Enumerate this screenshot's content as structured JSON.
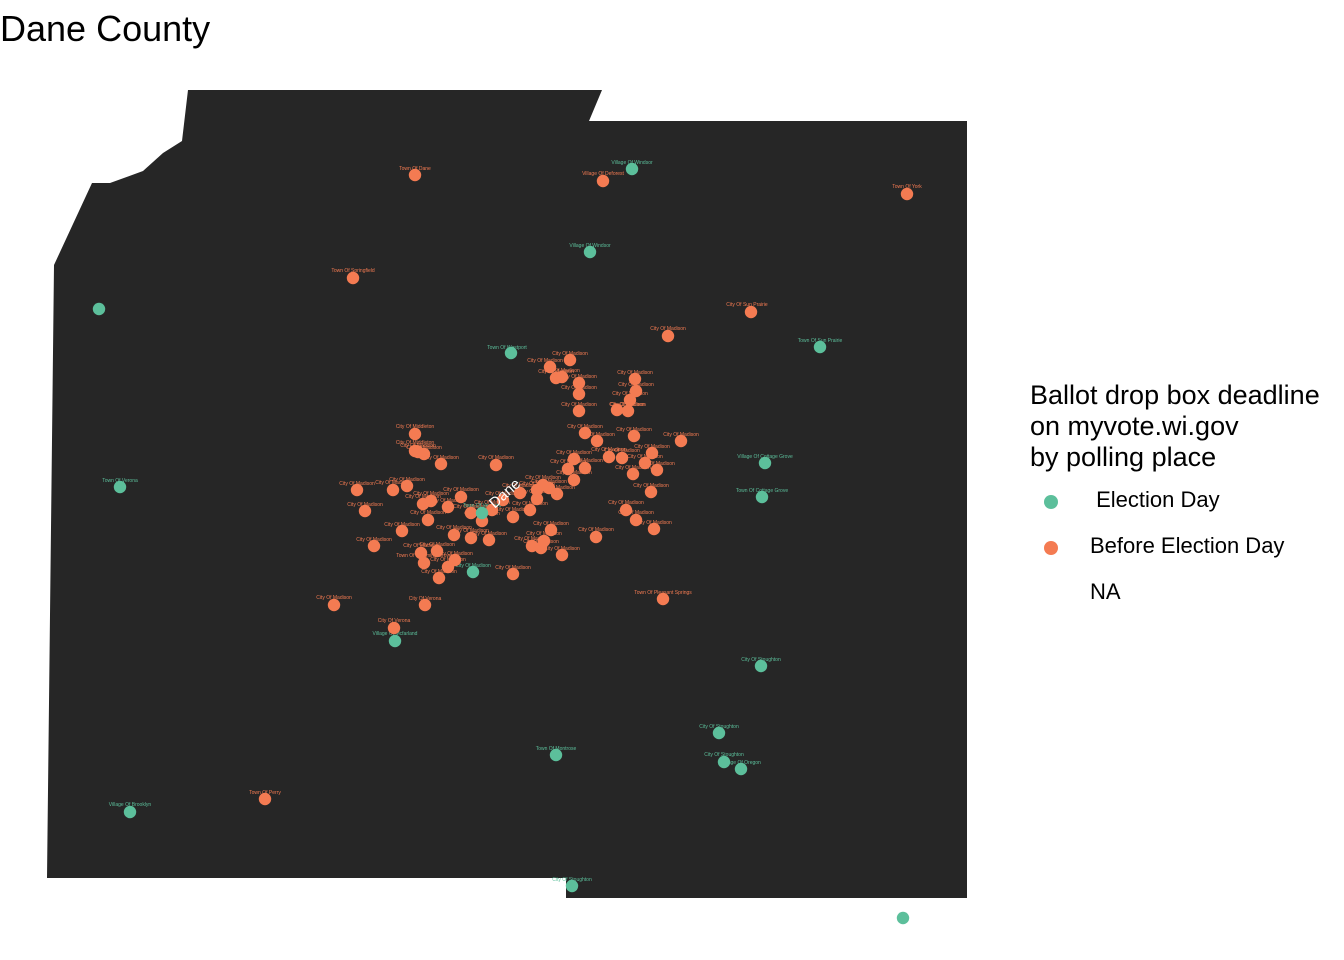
{
  "title": "Dane County",
  "county_label": "Dane",
  "colors": {
    "background": "#ffffff",
    "county_fill": "#262626",
    "election_day": "#5cbf9b",
    "before_election_day": "#f47b52",
    "county_label": "#ffffff"
  },
  "legend": {
    "title": "Ballot drop box deadline\non myvote.wi.gov\nby polling place",
    "items": [
      {
        "label": " Election Day",
        "key": "election_day"
      },
      {
        "label": "Before Election Day",
        "key": "before_election_day"
      },
      {
        "label": "NA",
        "key": "na"
      }
    ]
  },
  "polling_places": [
    {
      "label": "Town Of Dane",
      "deadline": "before_election_day"
    },
    {
      "label": "Village Of Windsor",
      "deadline": "election_day"
    },
    {
      "label": "Village Of Deforest",
      "deadline": "before_election_day"
    },
    {
      "label": "Town Of York",
      "deadline": "before_election_day"
    },
    {
      "label": "Village Of Windsor",
      "deadline": "election_day"
    },
    {
      "label": "Town Of Springfield",
      "deadline": "before_election_day"
    },
    {
      "label": "City Of Sun Prairie",
      "deadline": "before_election_day"
    },
    {
      "label": "City Of Madison",
      "deadline": "before_election_day"
    },
    {
      "label": "Town Of Westport",
      "deadline": "election_day"
    },
    {
      "label": "Town Of Sun Prairie",
      "deadline": "election_day"
    },
    {
      "label": "City Of Madison",
      "deadline": "before_election_day"
    },
    {
      "label": "City Of Madison",
      "deadline": "before_election_day"
    },
    {
      "label": "City Of Madison",
      "deadline": "before_election_day"
    },
    {
      "label": "City Of Madison",
      "deadline": "before_election_day"
    },
    {
      "label": "City Of Madison",
      "deadline": "before_election_day"
    },
    {
      "label": "City Of Madison",
      "deadline": "before_election_day"
    },
    {
      "label": "City Of Madison",
      "deadline": "before_election_day"
    },
    {
      "label": "City Of Madison",
      "deadline": "before_election_day"
    },
    {
      "label": "City Of Madison",
      "deadline": "before_election_day"
    },
    {
      "label": "City Of Madison",
      "deadline": "before_election_day"
    },
    {
      "label": "City Of Madison",
      "deadline": "before_election_day"
    },
    {
      "label": "City Of Middleton",
      "deadline": "before_election_day"
    },
    {
      "label": "City Of Middleton",
      "deadline": "before_election_day"
    },
    {
      "label": "City Of Madison",
      "deadline": "before_election_day"
    },
    {
      "label": "City Of Madison",
      "deadline": "before_election_day"
    },
    {
      "label": "City Of Madison",
      "deadline": "before_election_day"
    },
    {
      "label": "City Of Madison",
      "deadline": "before_election_day"
    },
    {
      "label": "City Of Madison",
      "deadline": "before_election_day"
    },
    {
      "label": "City Of Madison",
      "deadline": "before_election_day"
    },
    {
      "label": "City Of Madison",
      "deadline": "before_election_day"
    },
    {
      "label": "City Of Madison",
      "deadline": "before_election_day"
    },
    {
      "label": "Village Of Cottage Grove",
      "deadline": "election_day"
    },
    {
      "label": "Town Of Cottage Grove",
      "deadline": "election_day"
    },
    {
      "label": "City Of Madison",
      "deadline": "before_election_day"
    },
    {
      "label": "City Of Madison",
      "deadline": "before_election_day"
    },
    {
      "label": "City Of Madison",
      "deadline": "before_election_day"
    },
    {
      "label": "City Of Madison",
      "deadline": "before_election_day"
    },
    {
      "label": "City Of Madison",
      "deadline": "before_election_day"
    },
    {
      "label": "City Of Madison",
      "deadline": "before_election_day"
    },
    {
      "label": "City Of Madison",
      "deadline": "before_election_day"
    },
    {
      "label": "City Of Madison",
      "deadline": "before_election_day"
    },
    {
      "label": "City Of Madison",
      "deadline": "before_election_day"
    },
    {
      "label": "City Of Madison",
      "deadline": "before_election_day"
    },
    {
      "label": "City Of Madison",
      "deadline": "before_election_day"
    },
    {
      "label": "City Of Madison",
      "deadline": "before_election_day"
    },
    {
      "label": "City Of Madison",
      "deadline": "before_election_day"
    },
    {
      "label": "City Of Madison",
      "deadline": "before_election_day"
    },
    {
      "label": "City Of Madison",
      "deadline": "before_election_day"
    },
    {
      "label": "City Of Madison",
      "deadline": "before_election_day"
    },
    {
      "label": "City Of Madison",
      "deadline": "before_election_day"
    },
    {
      "label": "City Of Madison",
      "deadline": "before_election_day"
    },
    {
      "label": "City Of Madison",
      "deadline": "before_election_day"
    },
    {
      "label": "City Of Madison",
      "deadline": "before_election_day"
    },
    {
      "label": "City Of Madison",
      "deadline": "before_election_day"
    },
    {
      "label": "City Of Madison",
      "deadline": "before_election_day"
    },
    {
      "label": "City Of Madison",
      "deadline": "before_election_day"
    },
    {
      "label": "City Of Madison",
      "deadline": "before_election_day"
    },
    {
      "label": "City Of Madison",
      "deadline": "before_election_day"
    },
    {
      "label": "City Of Madison",
      "deadline": "before_election_day"
    },
    {
      "label": "City Of Madison",
      "deadline": "before_election_day"
    },
    {
      "label": "City Of Madison",
      "deadline": "before_election_day"
    },
    {
      "label": "City Of Madison",
      "deadline": "before_election_day"
    },
    {
      "label": "City Of Madison",
      "deadline": "before_election_day"
    },
    {
      "label": "City Of Madison",
      "deadline": "before_election_day"
    },
    {
      "label": "City Of Madison",
      "deadline": "before_election_day"
    },
    {
      "label": "City Of Madison",
      "deadline": "before_election_day"
    },
    {
      "label": "City Of Madison",
      "deadline": "before_election_day"
    },
    {
      "label": "City Of Madison",
      "deadline": "before_election_day"
    },
    {
      "label": "City Of Madison",
      "deadline": "before_election_day"
    },
    {
      "label": "City Of Madison",
      "deadline": "before_election_day"
    },
    {
      "label": "City Of Madison",
      "deadline": "before_election_day"
    },
    {
      "label": "City Of Madison",
      "deadline": "before_election_day"
    },
    {
      "label": "City Of Madison",
      "deadline": "before_election_day"
    },
    {
      "label": "City Of Madison",
      "deadline": "before_election_day"
    },
    {
      "label": "City Of Madison",
      "deadline": "before_election_day"
    },
    {
      "label": "City Of Madison",
      "deadline": "before_election_day"
    },
    {
      "label": "City Of Madison",
      "deadline": "before_election_day"
    },
    {
      "label": "City Of Madison",
      "deadline": "before_election_day"
    },
    {
      "label": "City Of Madison",
      "deadline": "before_election_day"
    },
    {
      "label": "City Of Madison",
      "deadline": "before_election_day"
    },
    {
      "label": "City Of Madison",
      "deadline": "before_election_day"
    },
    {
      "label": "City Of Madison",
      "deadline": "before_election_day"
    },
    {
      "label": "City Of Madison",
      "deadline": "election_day"
    },
    {
      "label": "City Of Madison",
      "deadline": "before_election_day"
    },
    {
      "label": "City Of Madison",
      "deadline": "before_election_day"
    },
    {
      "label": "City Of Madison",
      "deadline": "before_election_day"
    },
    {
      "label": "City Of Madison",
      "deadline": "before_election_day"
    },
    {
      "label": "Town Of Blooming Grove",
      "deadline": "before_election_day"
    },
    {
      "label": "Town Of Vermont",
      "deadline": "election_day"
    },
    {
      "label": "Town Of Verona",
      "deadline": "election_day"
    },
    {
      "label": "City Of Madison",
      "deadline": "before_election_day"
    },
    {
      "label": "City Of Verona",
      "deadline": "before_election_day"
    },
    {
      "label": "City Of Verona",
      "deadline": "before_election_day"
    },
    {
      "label": "Village Of Mcfarland",
      "deadline": "election_day"
    },
    {
      "label": "Town Of Pleasant Springs",
      "deadline": "before_election_day"
    },
    {
      "label": "City Of Stoughton",
      "deadline": "election_day"
    },
    {
      "label": "City Of Stoughton",
      "deadline": "election_day"
    },
    {
      "label": "City Of Stoughton",
      "deadline": "election_day"
    },
    {
      "label": "Village Of Oregon",
      "deadline": "election_day"
    },
    {
      "label": "Town Of Montrose",
      "deadline": "election_day"
    },
    {
      "label": "Town Of Perry",
      "deadline": "before_election_day"
    },
    {
      "label": "Village Of Brooklyn",
      "deadline": "election_day"
    },
    {
      "label": "City Of Stoughton",
      "deadline": "election_day"
    },
    {
      "label": "",
      "deadline": "election_day"
    },
    {
      "label": "",
      "deadline": "election_day"
    }
  ]
}
